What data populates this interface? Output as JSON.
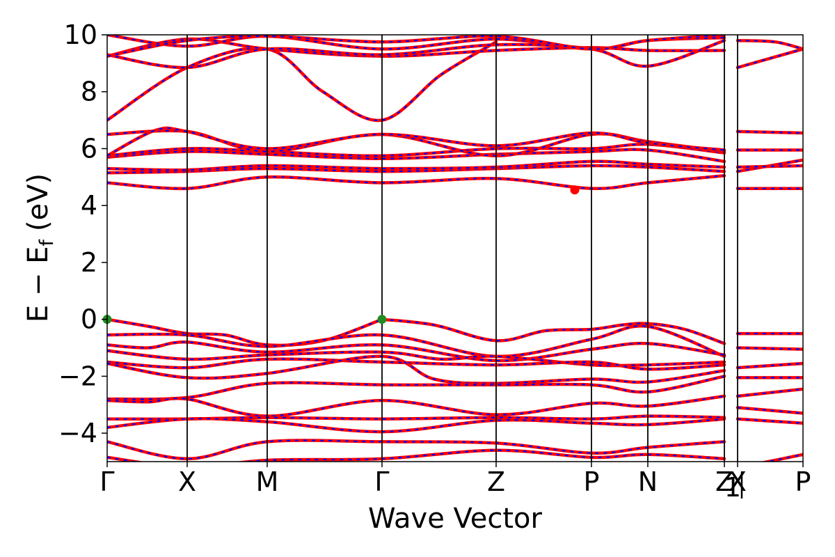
{
  "chart_data": {
    "type": "line",
    "title": "",
    "xlabel": "Wave Vector",
    "ylabel_parts": {
      "main": "E − E",
      "sub": "f",
      "unit": "(eV)"
    },
    "x_range": [
      0,
      1
    ],
    "ylim": [
      -5,
      10
    ],
    "y_ticks": [
      -4,
      -2,
      0,
      2,
      4,
      6,
      8,
      10
    ],
    "y_tick_labels": [
      "−4",
      "−2",
      "0",
      "2",
      "4",
      "6",
      "8",
      "10"
    ],
    "kpoints": [
      {
        "label": "Γ",
        "x": 0.0
      },
      {
        "label": "X",
        "x": 0.115
      },
      {
        "label": "M",
        "x": 0.23
      },
      {
        "label": "Γ",
        "x": 0.395
      },
      {
        "label": "Z",
        "x": 0.559
      },
      {
        "label": "P",
        "x": 0.696
      },
      {
        "label": "N",
        "x": 0.777
      },
      {
        "label": "Z",
        "x": 0.887
      },
      {
        "label": "1",
        "x": 0.887
      },
      {
        "label": "X",
        "x": 0.906
      },
      {
        "label": "P",
        "x": 1.0
      }
    ],
    "kpoint_lines": [
      0.115,
      0.23,
      0.395,
      0.559,
      0.696,
      0.777,
      0.887,
      0.906
    ],
    "series_colors": {
      "spin_up": "#ff0000",
      "spin_down": "#0000ff"
    },
    "markers": [
      {
        "x": 0.0,
        "y": 0.0,
        "color": "#228b22"
      },
      {
        "x": 0.395,
        "y": 0.0,
        "color": "#228b22"
      },
      {
        "x": 0.672,
        "y": 4.55,
        "color": "#ff0000"
      }
    ],
    "bands": [
      {
        "x": [
          0,
          0.06,
          0.115,
          0.17,
          0.23,
          0.31,
          0.395
        ],
        "y": [
          0.0,
          -0.25,
          -0.5,
          -0.55,
          -0.9,
          -0.75,
          0.0
        ]
      },
      {
        "x": [
          0.395,
          0.47,
          0.559,
          0.63,
          0.696,
          0.74,
          0.777,
          0.83,
          0.887
        ],
        "y": [
          0.0,
          -0.2,
          -0.75,
          -0.4,
          -0.35,
          -0.2,
          -0.15,
          -0.35,
          -0.85
        ]
      },
      {
        "x": [
          0,
          0.115,
          0.23,
          0.395,
          0.559,
          0.696,
          0.777,
          0.887
        ],
        "y": [
          -0.55,
          -0.55,
          -0.95,
          -0.55,
          -1.3,
          -0.7,
          -0.25,
          -1.3
        ]
      },
      {
        "x": [
          0,
          0.06,
          0.115,
          0.23,
          0.395,
          0.559,
          0.696,
          0.777,
          0.887
        ],
        "y": [
          -0.9,
          -1.0,
          -0.8,
          -1.15,
          -0.9,
          -1.45,
          -1.05,
          -0.85,
          -1.25
        ]
      },
      {
        "x": [
          0,
          0.115,
          0.23,
          0.395,
          0.48,
          0.559,
          0.696,
          0.777,
          0.887
        ],
        "y": [
          -1.1,
          -1.4,
          -1.25,
          -1.15,
          -1.4,
          -1.3,
          -1.6,
          -1.6,
          -1.5
        ]
      },
      {
        "x": [
          0,
          0.115,
          0.23,
          0.395,
          0.559,
          0.696,
          0.777,
          0.887
        ],
        "y": [
          -1.5,
          -1.7,
          -1.4,
          -1.5,
          -1.6,
          -1.5,
          -1.75,
          -1.6
        ]
      },
      {
        "x": [
          0,
          0.115,
          0.23,
          0.395,
          0.47,
          0.559,
          0.696,
          0.777,
          0.887
        ],
        "y": [
          -1.55,
          -2.05,
          -1.9,
          -1.3,
          -2.1,
          -2.25,
          -2.1,
          -2.2,
          -1.8
        ]
      },
      {
        "x": [
          0,
          0.115,
          0.23,
          0.395,
          0.559,
          0.696,
          0.777,
          0.887
        ],
        "y": [
          -2.8,
          -2.75,
          -2.25,
          -2.3,
          -2.3,
          -2.3,
          -2.55,
          -2.0
        ]
      },
      {
        "x": [
          0,
          0.06,
          0.115,
          0.23,
          0.395,
          0.559,
          0.696,
          0.777,
          0.887
        ],
        "y": [
          -2.85,
          -2.9,
          -2.8,
          -3.4,
          -2.85,
          -3.35,
          -2.95,
          -3.05,
          -2.7
        ]
      },
      {
        "x": [
          0,
          0.115,
          0.23,
          0.395,
          0.559,
          0.696,
          0.777,
          0.887
        ],
        "y": [
          -3.5,
          -3.5,
          -3.45,
          -3.5,
          -3.45,
          -3.5,
          -3.4,
          -3.45
        ]
      },
      {
        "x": [
          0,
          0.115,
          0.23,
          0.395,
          0.559,
          0.696,
          0.777,
          0.887
        ],
        "y": [
          -3.8,
          -3.5,
          -3.6,
          -3.95,
          -3.55,
          -3.65,
          -3.7,
          -3.5
        ]
      },
      {
        "x": [
          0,
          0.115,
          0.23,
          0.395,
          0.559,
          0.696,
          0.777,
          0.887
        ],
        "y": [
          -4.3,
          -4.9,
          -4.3,
          -4.3,
          -4.35,
          -4.7,
          -4.5,
          -4.3
        ]
      },
      {
        "x": [
          0,
          0.115,
          0.23,
          0.395,
          0.559,
          0.696,
          0.777,
          0.887
        ],
        "y": [
          -4.85,
          -5.2,
          -4.95,
          -4.9,
          -4.6,
          -4.85,
          -4.75,
          -4.9
        ]
      },
      {
        "x": [
          0.906,
          1.0
        ],
        "y": [
          -0.5,
          -0.5
        ]
      },
      {
        "x": [
          0.906,
          1.0
        ],
        "y": [
          -1.0,
          -1.05
        ]
      },
      {
        "x": [
          0.906,
          1.0
        ],
        "y": [
          -1.7,
          -1.55
        ]
      },
      {
        "x": [
          0.906,
          1.0
        ],
        "y": [
          -2.05,
          -2.05
        ]
      },
      {
        "x": [
          0.906,
          1.0
        ],
        "y": [
          -2.7,
          -2.45
        ]
      },
      {
        "x": [
          0.906,
          1.0
        ],
        "y": [
          -3.1,
          -3.3
        ]
      },
      {
        "x": [
          0.906,
          1.0
        ],
        "y": [
          -3.5,
          -3.65
        ]
      },
      {
        "x": [
          0.906,
          0.95,
          1.0
        ],
        "y": [
          -5.2,
          -5.0,
          -4.75
        ]
      },
      {
        "x": [
          0,
          0.115,
          0.23,
          0.395,
          0.559,
          0.696,
          0.777,
          0.887
        ],
        "y": [
          4.8,
          4.6,
          5.0,
          4.8,
          4.95,
          4.6,
          4.8,
          5.05
        ]
      },
      {
        "x": [
          0,
          0.115,
          0.23,
          0.395,
          0.559,
          0.696,
          0.777,
          0.887
        ],
        "y": [
          5.15,
          5.2,
          5.3,
          5.2,
          5.3,
          5.4,
          5.35,
          5.2
        ]
      },
      {
        "x": [
          0,
          0.115,
          0.23,
          0.395,
          0.559,
          0.696,
          0.777,
          0.887
        ],
        "y": [
          5.3,
          5.25,
          5.4,
          5.3,
          5.35,
          5.55,
          5.45,
          5.35
        ]
      },
      {
        "x": [
          0,
          0.115,
          0.23,
          0.395,
          0.559,
          0.696,
          0.777,
          0.887
        ],
        "y": [
          5.7,
          5.9,
          5.8,
          5.65,
          5.8,
          5.9,
          5.95,
          5.55
        ]
      },
      {
        "x": [
          0,
          0.115,
          0.23,
          0.395,
          0.559,
          0.696,
          0.777,
          0.887
        ],
        "y": [
          5.75,
          6.0,
          5.9,
          5.75,
          6.0,
          6.0,
          6.15,
          5.85
        ]
      },
      {
        "x": [
          0,
          0.115,
          0.23,
          0.395,
          0.559,
          0.696,
          0.777,
          0.887
        ],
        "y": [
          6.5,
          6.6,
          5.9,
          6.5,
          5.75,
          6.5,
          6.25,
          5.9
        ]
      },
      {
        "x": [
          0,
          0.07,
          0.115,
          0.23,
          0.395,
          0.559,
          0.696,
          0.777,
          0.887
        ],
        "y": [
          5.75,
          6.65,
          6.6,
          6.0,
          6.5,
          6.1,
          6.55,
          6.2,
          5.95
        ]
      },
      {
        "x": [
          0,
          0.115,
          0.23,
          0.31,
          0.395,
          0.48,
          0.559
        ],
        "y": [
          7.0,
          8.85,
          9.5,
          8.0,
          7.0,
          8.6,
          9.75
        ]
      },
      {
        "x": [
          0,
          0.115,
          0.23,
          0.395,
          0.559,
          0.696,
          0.777,
          0.887
        ],
        "y": [
          9.25,
          9.85,
          9.5,
          9.25,
          9.45,
          9.55,
          9.45,
          9.45
        ]
      },
      {
        "x": [
          0,
          0.115,
          0.23,
          0.395,
          0.559,
          0.696,
          0.777,
          0.887
        ],
        "y": [
          10.0,
          9.6,
          9.95,
          9.5,
          9.85,
          9.5,
          9.8,
          9.9
        ]
      },
      {
        "x": [
          0,
          0.115,
          0.23,
          0.395,
          0.559,
          0.696,
          0.777,
          0.887
        ],
        "y": [
          9.3,
          8.85,
          9.5,
          9.3,
          9.65,
          9.5,
          8.9,
          9.8
        ]
      },
      {
        "x": [
          0,
          0.115,
          0.23,
          0.395,
          0.559,
          0.696,
          0.777,
          0.887
        ],
        "y": [
          9.25,
          9.8,
          9.95,
          9.75,
          9.95,
          9.5,
          9.8,
          10.0
        ]
      },
      {
        "x": [
          0.906,
          1.0
        ],
        "y": [
          4.6,
          4.6
        ]
      },
      {
        "x": [
          0.906,
          1.0
        ],
        "y": [
          5.2,
          5.6
        ]
      },
      {
        "x": [
          0.906,
          1.0
        ],
        "y": [
          5.35,
          5.4
        ]
      },
      {
        "x": [
          0.906,
          1.0
        ],
        "y": [
          5.95,
          5.95
        ]
      },
      {
        "x": [
          0.906,
          1.0
        ],
        "y": [
          6.6,
          6.55
        ]
      },
      {
        "x": [
          0.906,
          1.0
        ],
        "y": [
          8.85,
          9.5
        ]
      },
      {
        "x": [
          0.906,
          0.96,
          1.0
        ],
        "y": [
          9.8,
          9.75,
          9.5
        ]
      }
    ]
  }
}
